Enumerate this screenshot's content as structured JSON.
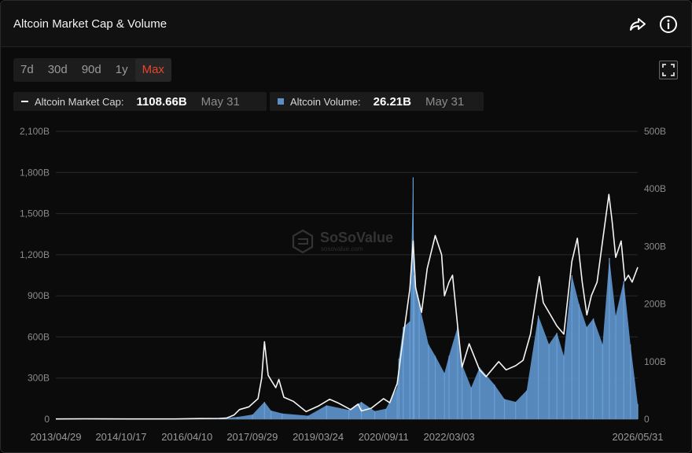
{
  "header": {
    "title": "Altcoin Market Cap & Volume",
    "share_icon": "share-icon",
    "info_icon": "info-icon"
  },
  "tabs": [
    {
      "label": "7d",
      "active": false
    },
    {
      "label": "30d",
      "active": false
    },
    {
      "label": "90d",
      "active": false
    },
    {
      "label": "1y",
      "active": false
    },
    {
      "label": "Max",
      "active": true
    }
  ],
  "legend": {
    "market_cap": {
      "label": "Altcoin Market Cap:",
      "value": "1108.66B",
      "date": "May 31"
    },
    "volume": {
      "label": "Altcoin Volume:",
      "value": "26.21B",
      "date": "May 31"
    }
  },
  "watermark": {
    "brand": "SoSoValue",
    "sub": "sosovalue.com"
  },
  "colors": {
    "accent": "#e8452c",
    "market_cap_line": "#ffffff",
    "volume_fill": "#5b8fc6"
  },
  "chart_data": {
    "type": "area",
    "title": "Altcoin Market Cap & Volume",
    "x_tick_labels": [
      "2013/04/29",
      "2014/10/17",
      "2016/04/10",
      "2017/09/29",
      "2019/03/24",
      "2020/09/11",
      "2022/03/03",
      "2026/05/31"
    ],
    "y_left_ticks": [
      "0",
      "300B",
      "600B",
      "900B",
      "1,200B",
      "1,500B",
      "1,800B",
      "2,100B"
    ],
    "y_left_range": [
      0,
      2100
    ],
    "y_right_ticks": [
      "0",
      "100B",
      "200B",
      "300B",
      "400B",
      "500B"
    ],
    "y_right_range": [
      0,
      500
    ],
    "grid": true,
    "series": [
      {
        "name": "Altcoin Market Cap",
        "axis": "left",
        "style": "line",
        "x": [
          "2013/04/29",
          "2014/01/01",
          "2015/01/01",
          "2016/01/01",
          "2016/06/01",
          "2017/01/01",
          "2017/03/01",
          "2017/05/01",
          "2017/06/15",
          "2017/09/01",
          "2017/11/15",
          "2017/12/15",
          "2018/01/07",
          "2018/02/06",
          "2018/03/05",
          "2018/04/10",
          "2018/05/05",
          "2018/06/15",
          "2018/09/01",
          "2018/12/15",
          "2019/03/24",
          "2019/06/26",
          "2019/09/01",
          "2019/12/15",
          "2020/02/15",
          "2020/03/13",
          "2020/06/01",
          "2020/09/11",
          "2020/11/01",
          "2021/01/01",
          "2021/02/20",
          "2021/04/15",
          "2021/05/12",
          "2021/06/01",
          "2021/07/20",
          "2021/09/05",
          "2021/11/10",
          "2022/01/01",
          "2022/01/24",
          "2022/03/03",
          "2022/04/01",
          "2022/05/10",
          "2022/06/18",
          "2022/08/15",
          "2022/11/09",
          "2023/01/01",
          "2023/04/15",
          "2023/06/15",
          "2023/09/01",
          "2023/11/01",
          "2024/01/01",
          "2024/03/13",
          "2024/04/15",
          "2024/06/01",
          "2024/08/05",
          "2024/10/01",
          "2024/12/06",
          "2025/01/20",
          "2025/03/01",
          "2025/04/08",
          "2025/05/15",
          "2025/07/01",
          "2025/08/15",
          "2025/10/06",
          "2025/11/01",
          "2025/12/01",
          "2026/01/15",
          "2026/02/15",
          "2026/03/15",
          "2026/04/15",
          "2026/05/31"
        ],
        "values": [
          2,
          3,
          2,
          2,
          4,
          6,
          8,
          30,
          70,
          90,
          150,
          300,
          565,
          320,
          280,
          230,
          290,
          160,
          130,
          55,
          95,
          145,
          120,
          70,
          110,
          60,
          80,
          150,
          120,
          260,
          600,
          950,
          1300,
          960,
          780,
          1100,
          1340,
          1200,
          900,
          1000,
          1050,
          700,
          380,
          550,
          360,
          310,
          420,
          360,
          390,
          430,
          620,
          1040,
          850,
          780,
          680,
          620,
          1150,
          1320,
          1000,
          760,
          900,
          1000,
          1300,
          1640,
          1450,
          1180,
          1300,
          1010,
          1050,
          1000,
          1108.66
        ]
      },
      {
        "name": "Altcoin Volume",
        "axis": "right",
        "style": "area",
        "x": [
          "2013/04/29",
          "2016/01/01",
          "2017/01/01",
          "2017/06/01",
          "2017/10/01",
          "2018/01/07",
          "2018/03/01",
          "2018/06/01",
          "2019/01/01",
          "2019/06/01",
          "2019/12/01",
          "2020/03/13",
          "2020/07/01",
          "2020/10/01",
          "2021/01/01",
          "2021/01/15",
          "2021/02/20",
          "2021/04/15",
          "2021/05/12",
          "2021/05/20",
          "2021/07/01",
          "2021/09/15",
          "2021/11/10",
          "2022/01/24",
          "2022/03/03",
          "2022/05/12",
          "2022/06/18",
          "2022/09/01",
          "2022/11/09",
          "2023/03/11",
          "2023/06/01",
          "2023/09/01",
          "2023/12/01",
          "2024/03/05",
          "2024/06/01",
          "2024/08/05",
          "2024/10/01",
          "2024/12/06",
          "2025/02/03",
          "2025/04/07",
          "2025/06/01",
          "2025/08/15",
          "2025/10/10",
          "2025/12/01",
          "2026/02/05",
          "2026/04/01",
          "2026/05/31"
        ],
        "values": [
          0.1,
          0.3,
          1,
          4,
          8,
          30,
          15,
          10,
          6,
          24,
          16,
          30,
          14,
          18,
          55,
          105,
          160,
          170,
          420,
          250,
          200,
          130,
          110,
          80,
          110,
          160,
          95,
          55,
          90,
          60,
          35,
          30,
          50,
          180,
          130,
          150,
          110,
          250,
          200,
          160,
          175,
          130,
          280,
          180,
          240,
          130,
          26.21
        ]
      }
    ]
  }
}
